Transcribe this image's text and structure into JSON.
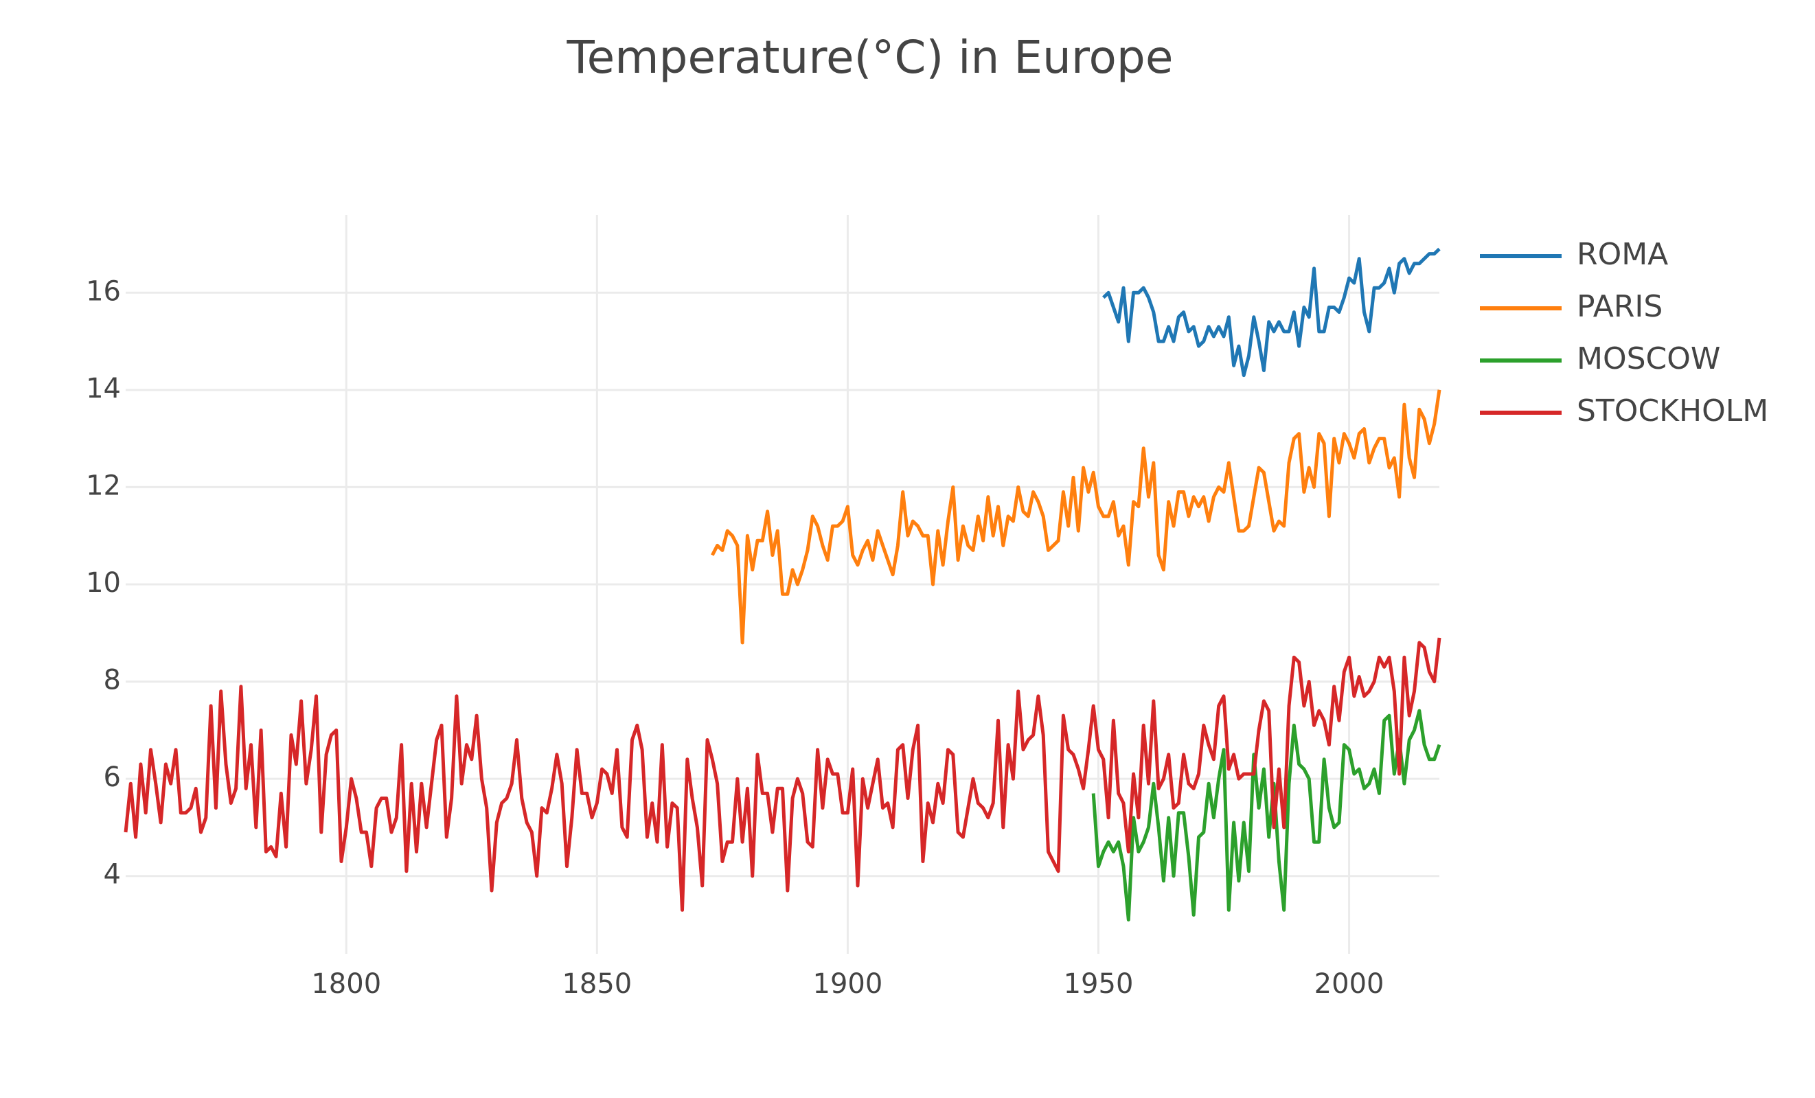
{
  "chart_data": {
    "type": "line",
    "title": "Temperature(°C) in Europe",
    "xlim": [
      1756,
      2018
    ],
    "xticks": [
      1800,
      1850,
      1900,
      1950,
      2000
    ],
    "ylim": [
      2.4,
      17.6
    ],
    "yticks": [
      4,
      6,
      8,
      10,
      12,
      14,
      16
    ],
    "grid": true,
    "legend": "right",
    "series": [
      {
        "name": "ROMA",
        "color": "#1f77b4",
        "x": [
          1951,
          1952,
          1953,
          1954,
          1955,
          1956,
          1957,
          1958,
          1959,
          1960,
          1961,
          1962,
          1963,
          1964,
          1965,
          1966,
          1967,
          1968,
          1969,
          1970,
          1971,
          1972,
          1973,
          1974,
          1975,
          1976,
          1977,
          1978,
          1979,
          1980,
          1981,
          1982,
          1983,
          1984,
          1985,
          1986,
          1987,
          1988,
          1989,
          1990,
          1991,
          1992,
          1993,
          1994,
          1995,
          1996,
          1997,
          1998,
          1999,
          2000,
          2001,
          2002,
          2003,
          2004,
          2005,
          2006,
          2007,
          2008,
          2009,
          2010,
          2011,
          2012,
          2013,
          2014,
          2015,
          2016,
          2017,
          2018
        ],
        "values": [
          15.9,
          16.0,
          15.7,
          15.4,
          16.1,
          15.0,
          16.0,
          16.0,
          16.1,
          15.9,
          15.6,
          15.0,
          15.0,
          15.3,
          15.0,
          15.5,
          15.6,
          15.2,
          15.3,
          14.9,
          15.0,
          15.3,
          15.1,
          15.3,
          15.1,
          15.5,
          14.5,
          14.9,
          14.3,
          14.7,
          15.5,
          15.0,
          14.4,
          15.4,
          15.2,
          15.4,
          15.2,
          15.2,
          15.6,
          14.9,
          15.7,
          15.5,
          16.5,
          15.2,
          15.2,
          15.7,
          15.7,
          15.6,
          15.9,
          16.3,
          16.2,
          16.7,
          15.6,
          15.2,
          16.1,
          16.1,
          16.2,
          16.5,
          16.0,
          16.6,
          16.7,
          16.4,
          16.6,
          16.6,
          16.7,
          16.8,
          16.8,
          16.9
        ]
      },
      {
        "name": "PARIS",
        "color": "#ff7f0e",
        "x": [
          1873,
          1874,
          1875,
          1876,
          1877,
          1878,
          1879,
          1880,
          1881,
          1882,
          1883,
          1884,
          1885,
          1886,
          1887,
          1888,
          1889,
          1890,
          1891,
          1892,
          1893,
          1894,
          1895,
          1896,
          1897,
          1898,
          1899,
          1900,
          1901,
          1902,
          1903,
          1904,
          1905,
          1906,
          1907,
          1908,
          1909,
          1910,
          1911,
          1912,
          1913,
          1914,
          1915,
          1916,
          1917,
          1918,
          1919,
          1920,
          1921,
          1922,
          1923,
          1924,
          1925,
          1926,
          1927,
          1928,
          1929,
          1930,
          1931,
          1932,
          1933,
          1934,
          1935,
          1936,
          1937,
          1938,
          1939,
          1940,
          1941,
          1942,
          1943,
          1944,
          1945,
          1946,
          1947,
          1948,
          1949,
          1950,
          1951,
          1952,
          1953,
          1954,
          1955,
          1956,
          1957,
          1958,
          1959,
          1960,
          1961,
          1962,
          1963,
          1964,
          1965,
          1966,
          1967,
          1968,
          1969,
          1970,
          1971,
          1972,
          1973,
          1974,
          1975,
          1976,
          1977,
          1978,
          1979,
          1980,
          1981,
          1982,
          1983,
          1984,
          1985,
          1986,
          1987,
          1988,
          1989,
          1990,
          1991,
          1992,
          1993,
          1994,
          1995,
          1996,
          1997,
          1998,
          1999,
          2000,
          2001,
          2002,
          2003,
          2004,
          2005,
          2006,
          2007,
          2008,
          2009,
          2010,
          2011,
          2012,
          2013,
          2014,
          2015,
          2016,
          2017,
          2018
        ],
        "values": [
          10.6,
          10.8,
          10.7,
          11.1,
          11.0,
          10.8,
          8.8,
          11.0,
          10.3,
          10.9,
          10.9,
          11.5,
          10.6,
          11.1,
          9.8,
          9.8,
          10.3,
          10.0,
          10.3,
          10.7,
          11.4,
          11.2,
          10.8,
          10.5,
          11.2,
          11.2,
          11.3,
          11.6,
          10.6,
          10.4,
          10.7,
          10.9,
          10.5,
          11.1,
          10.8,
          10.5,
          10.2,
          10.8,
          11.9,
          11.0,
          11.3,
          11.2,
          11.0,
          11.0,
          10.0,
          11.1,
          10.4,
          11.3,
          12.0,
          10.5,
          11.2,
          10.8,
          10.7,
          11.4,
          10.9,
          11.8,
          11.0,
          11.6,
          10.8,
          11.4,
          11.3,
          12.0,
          11.5,
          11.4,
          11.9,
          11.7,
          11.4,
          10.7,
          10.8,
          10.9,
          11.9,
          11.2,
          12.2,
          11.1,
          12.4,
          11.9,
          12.3,
          11.6,
          11.4,
          11.4,
          11.7,
          11.0,
          11.2,
          10.4,
          11.7,
          11.6,
          12.8,
          11.8,
          12.5,
          10.6,
          10.3,
          11.7,
          11.2,
          11.9,
          11.9,
          11.4,
          11.8,
          11.6,
          11.8,
          11.3,
          11.8,
          12.0,
          11.9,
          12.5,
          11.8,
          11.1,
          11.1,
          11.2,
          11.8,
          12.4,
          12.3,
          11.7,
          11.1,
          11.3,
          11.2,
          12.5,
          13.0,
          13.1,
          11.9,
          12.4,
          12.0,
          13.1,
          12.9,
          11.4,
          13.0,
          12.5,
          13.1,
          12.9,
          12.6,
          13.1,
          13.2,
          12.5,
          12.8,
          13.0,
          13.0,
          12.4,
          12.6,
          11.8,
          13.7,
          12.6,
          12.2,
          13.6,
          13.4,
          12.9,
          13.3,
          14.0
        ]
      },
      {
        "name": "MOSCOW",
        "color": "#2ca02c",
        "x": [
          1949,
          1950,
          1951,
          1952,
          1953,
          1954,
          1955,
          1956,
          1957,
          1958,
          1959,
          1960,
          1961,
          1962,
          1963,
          1964,
          1965,
          1966,
          1967,
          1968,
          1969,
          1970,
          1971,
          1972,
          1973,
          1974,
          1975,
          1976,
          1977,
          1978,
          1979,
          1980,
          1981,
          1982,
          1983,
          1984,
          1985,
          1986,
          1987,
          1988,
          1989,
          1990,
          1991,
          1992,
          1993,
          1994,
          1995,
          1996,
          1997,
          1998,
          1999,
          2000,
          2001,
          2002,
          2003,
          2004,
          2005,
          2006,
          2007,
          2008,
          2009,
          2010,
          2011,
          2012,
          2013,
          2014,
          2015,
          2016,
          2017,
          2018
        ],
        "values": [
          5.7,
          4.2,
          4.5,
          4.7,
          4.5,
          4.7,
          4.2,
          3.1,
          5.2,
          4.5,
          4.7,
          5.0,
          5.9,
          5.0,
          3.9,
          5.2,
          4.0,
          5.3,
          5.3,
          4.4,
          3.2,
          4.8,
          4.9,
          5.9,
          5.2,
          6.0,
          6.6,
          3.3,
          5.1,
          3.9,
          5.1,
          4.1,
          6.5,
          5.4,
          6.2,
          4.8,
          5.9,
          4.3,
          3.3,
          5.9,
          7.1,
          6.3,
          6.2,
          6.0,
          4.7,
          4.7,
          6.4,
          5.4,
          5.0,
          5.1,
          6.7,
          6.6,
          6.1,
          6.2,
          5.8,
          5.9,
          6.2,
          5.7,
          7.2,
          7.3,
          6.1,
          6.8,
          5.9,
          6.8,
          7.0,
          7.4,
          6.7,
          6.4,
          6.4,
          6.7
        ]
      },
      {
        "name": "STOCKHOLM",
        "color": "#d62728",
        "x": [
          1756,
          1757,
          1758,
          1759,
          1760,
          1761,
          1762,
          1763,
          1764,
          1765,
          1766,
          1767,
          1768,
          1769,
          1770,
          1771,
          1772,
          1773,
          1774,
          1775,
          1776,
          1777,
          1778,
          1779,
          1780,
          1781,
          1782,
          1783,
          1784,
          1785,
          1786,
          1787,
          1788,
          1789,
          1790,
          1791,
          1792,
          1793,
          1794,
          1795,
          1796,
          1797,
          1798,
          1799,
          1800,
          1801,
          1802,
          1803,
          1804,
          1805,
          1806,
          1807,
          1808,
          1809,
          1810,
          1811,
          1812,
          1813,
          1814,
          1815,
          1816,
          1817,
          1818,
          1819,
          1820,
          1821,
          1822,
          1823,
          1824,
          1825,
          1826,
          1827,
          1828,
          1829,
          1830,
          1831,
          1832,
          1833,
          1834,
          1835,
          1836,
          1837,
          1838,
          1839,
          1840,
          1841,
          1842,
          1843,
          1844,
          1845,
          1846,
          1847,
          1848,
          1849,
          1850,
          1851,
          1852,
          1853,
          1854,
          1855,
          1856,
          1857,
          1858,
          1859,
          1860,
          1861,
          1862,
          1863,
          1864,
          1865,
          1866,
          1867,
          1868,
          1869,
          1870,
          1871,
          1872,
          1873,
          1874,
          1875,
          1876,
          1877,
          1878,
          1879,
          1880,
          1881,
          1882,
          1883,
          1884,
          1885,
          1886,
          1887,
          1888,
          1889,
          1890,
          1891,
          1892,
          1893,
          1894,
          1895,
          1896,
          1897,
          1898,
          1899,
          1900,
          1901,
          1902,
          1903,
          1904,
          1905,
          1906,
          1907,
          1908,
          1909,
          1910,
          1911,
          1912,
          1913,
          1914,
          1915,
          1916,
          1917,
          1918,
          1919,
          1920,
          1921,
          1922,
          1923,
          1924,
          1925,
          1926,
          1927,
          1928,
          1929,
          1930,
          1931,
          1932,
          1933,
          1934,
          1935,
          1936,
          1937,
          1938,
          1939,
          1940,
          1941,
          1942,
          1943,
          1944,
          1945,
          1946,
          1947,
          1948,
          1949,
          1950,
          1951,
          1952,
          1953,
          1954,
          1955,
          1956,
          1957,
          1958,
          1959,
          1960,
          1961,
          1962,
          1963,
          1964,
          1965,
          1966,
          1967,
          1968,
          1969,
          1970,
          1971,
          1972,
          1973,
          1974,
          1975,
          1976,
          1977,
          1978,
          1979,
          1980,
          1981,
          1982,
          1983,
          1984,
          1985,
          1986,
          1987,
          1988,
          1989,
          1990,
          1991,
          1992,
          1993,
          1994,
          1995,
          1996,
          1997,
          1998,
          1999,
          2000,
          2001,
          2002,
          2003,
          2004,
          2005,
          2006,
          2007,
          2008,
          2009,
          2010,
          2011,
          2012,
          2013,
          2014,
          2015,
          2016,
          2017,
          2018
        ],
        "values": [
          4.9,
          5.9,
          4.8,
          6.3,
          5.3,
          6.6,
          5.9,
          5.1,
          6.3,
          5.9,
          6.6,
          5.3,
          5.3,
          5.4,
          5.8,
          4.9,
          5.2,
          7.5,
          5.4,
          7.8,
          6.3,
          5.5,
          5.8,
          7.9,
          5.8,
          6.7,
          5.0,
          7.0,
          4.5,
          4.6,
          4.4,
          5.7,
          4.6,
          6.9,
          6.3,
          7.6,
          5.9,
          6.6,
          7.7,
          4.9,
          6.5,
          6.9,
          7.0,
          4.3,
          5.0,
          6.0,
          5.6,
          4.9,
          4.9,
          4.2,
          5.4,
          5.6,
          5.6,
          4.9,
          5.2,
          6.7,
          4.1,
          5.9,
          4.5,
          5.9,
          5.0,
          5.9,
          6.8,
          7.1,
          4.8,
          5.6,
          7.7,
          5.9,
          6.7,
          6.4,
          7.3,
          6.0,
          5.4,
          3.7,
          5.1,
          5.5,
          5.6,
          5.9,
          6.8,
          5.6,
          5.1,
          4.9,
          4.0,
          5.4,
          5.3,
          5.8,
          6.5,
          5.9,
          4.2,
          5.2,
          6.6,
          5.7,
          5.7,
          5.2,
          5.5,
          6.2,
          6.1,
          5.7,
          6.6,
          5.0,
          4.8,
          6.8,
          7.1,
          6.6,
          4.8,
          5.5,
          4.7,
          6.7,
          4.6,
          5.5,
          5.4,
          3.3,
          6.4,
          5.6,
          5.0,
          3.8,
          6.8,
          6.4,
          5.9,
          4.3,
          4.7,
          4.7,
          6.0,
          4.7,
          5.8,
          4.0,
          6.5,
          5.7,
          5.7,
          4.9,
          5.8,
          5.8,
          3.7,
          5.6,
          6.0,
          5.7,
          4.7,
          4.6,
          6.6,
          5.4,
          6.4,
          6.1,
          6.1,
          5.3,
          5.3,
          6.2,
          3.8,
          6.0,
          5.4,
          5.9,
          6.4,
          5.4,
          5.5,
          5.0,
          6.6,
          6.7,
          5.6,
          6.6,
          7.1,
          4.3,
          5.5,
          5.1,
          5.9,
          5.5,
          6.6,
          6.5,
          4.9,
          4.8,
          5.4,
          6.0,
          5.5,
          5.4,
          5.2,
          5.5,
          7.2,
          5.0,
          6.7,
          6.0,
          7.8,
          6.6,
          6.8,
          6.9,
          7.7,
          6.9,
          4.5,
          4.3,
          4.1,
          7.3,
          6.6,
          6.5,
          6.2,
          5.8,
          6.6,
          7.5,
          6.6,
          6.4,
          5.2,
          7.2,
          5.7,
          5.5,
          4.5,
          6.1,
          5.2,
          7.1,
          5.9,
          7.6,
          5.8,
          6.0,
          6.5,
          5.4,
          5.5,
          6.5,
          5.9,
          5.8,
          6.1,
          7.1,
          6.7,
          6.4,
          7.5,
          7.7,
          6.2,
          6.5,
          6.0,
          6.1,
          6.1,
          6.1,
          7.0,
          7.6,
          7.4,
          5.0,
          6.2,
          5.0,
          7.5,
          8.5,
          8.4,
          7.5,
          8.0,
          7.1,
          7.4,
          7.2,
          6.7,
          7.9,
          7.2,
          8.2,
          8.5,
          7.7,
          8.1,
          7.7,
          7.8,
          8.0,
          8.5,
          8.3,
          8.5,
          7.8,
          6.1,
          8.5,
          7.3,
          7.8,
          8.8,
          8.7,
          8.2,
          8.0,
          8.9
        ]
      }
    ]
  }
}
